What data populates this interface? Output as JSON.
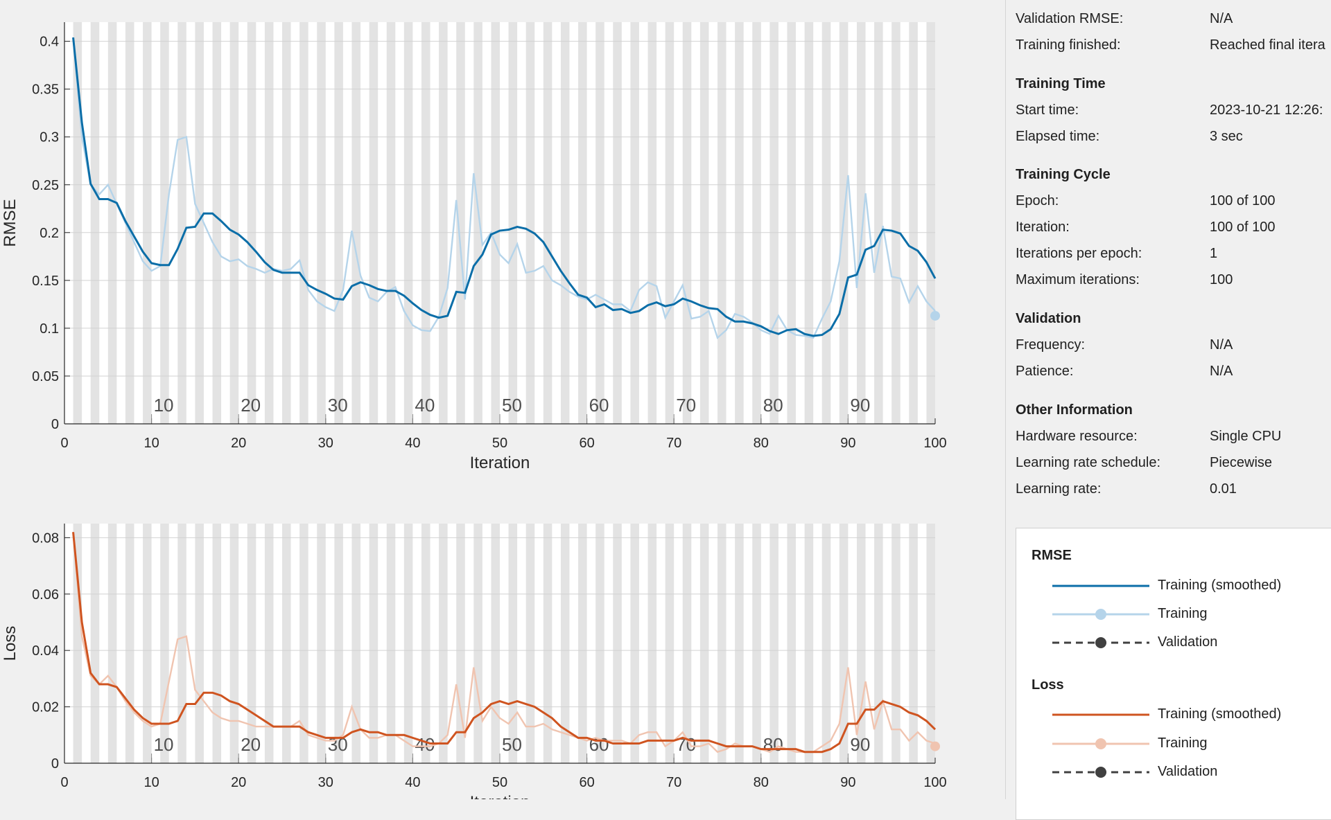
{
  "info": {
    "rows_top": [
      {
        "label": "Validation RMSE:",
        "value": "N/A"
      },
      {
        "label": "Training finished:",
        "value": "Reached final itera"
      }
    ],
    "sections": [
      {
        "title": "Training Time",
        "rows": [
          {
            "label": "Start time:",
            "value": "2023-10-21 12:26:"
          },
          {
            "label": "Elapsed time:",
            "value": "3 sec"
          }
        ]
      },
      {
        "title": "Training Cycle",
        "rows": [
          {
            "label": "Epoch:",
            "value": "100 of 100"
          },
          {
            "label": "Iteration:",
            "value": "100 of 100"
          },
          {
            "label": "Iterations per epoch:",
            "value": "1"
          },
          {
            "label": "Maximum iterations:",
            "value": "100"
          }
        ]
      },
      {
        "title": "Validation",
        "rows": [
          {
            "label": "Frequency:",
            "value": "N/A"
          },
          {
            "label": "Patience:",
            "value": "N/A"
          }
        ]
      },
      {
        "title": "Other Information",
        "rows": [
          {
            "label": "Hardware resource:",
            "value": "Single CPU"
          },
          {
            "label": "Learning rate schedule:",
            "value": "Piecewise"
          },
          {
            "label": "Learning rate:",
            "value": "0.01"
          }
        ]
      }
    ]
  },
  "legend": {
    "rmse_title": "RMSE",
    "loss_title": "Loss",
    "entries": [
      "Training (smoothed)",
      "Training",
      "Validation"
    ]
  },
  "chart_data": [
    {
      "type": "line",
      "xlabel": "Iteration",
      "ylabel": "RMSE",
      "xlim": [
        0,
        100
      ],
      "ylim": [
        0,
        0.42
      ],
      "yticks": [
        "0",
        "0.05",
        "0.1",
        "0.15",
        "0.2",
        "0.25",
        "0.3",
        "0.35",
        "0.4"
      ],
      "xticks": [
        "0",
        "10",
        "20",
        "30",
        "40",
        "50",
        "60",
        "70",
        "80",
        "90",
        "100"
      ],
      "epoch_labels": [
        "10",
        "20",
        "30",
        "40",
        "50",
        "60",
        "70",
        "80",
        "90"
      ],
      "grid": true,
      "colors": {
        "smoothed": "#0b6ea8",
        "raw": "#b5d4ea"
      },
      "series": [
        {
          "name": "Training (smoothed)",
          "values": [
            0.404,
            0.315,
            0.251,
            0.235,
            0.235,
            0.231,
            0.212,
            0.196,
            0.18,
            0.168,
            0.166,
            0.166,
            0.183,
            0.205,
            0.206,
            0.22,
            0.22,
            0.212,
            0.203,
            0.198,
            0.19,
            0.18,
            0.169,
            0.161,
            0.158,
            0.158,
            0.158,
            0.145,
            0.14,
            0.136,
            0.131,
            0.13,
            0.144,
            0.148,
            0.145,
            0.141,
            0.139,
            0.139,
            0.134,
            0.126,
            0.119,
            0.114,
            0.111,
            0.113,
            0.138,
            0.137,
            0.165,
            0.177,
            0.198,
            0.202,
            0.203,
            0.206,
            0.204,
            0.199,
            0.19,
            0.175,
            0.16,
            0.147,
            0.135,
            0.132,
            0.122,
            0.125,
            0.119,
            0.12,
            0.116,
            0.118,
            0.124,
            0.127,
            0.123,
            0.125,
            0.131,
            0.128,
            0.124,
            0.121,
            0.12,
            0.112,
            0.107,
            0.107,
            0.105,
            0.102,
            0.097,
            0.094,
            0.098,
            0.099,
            0.094,
            0.092,
            0.093,
            0.099,
            0.115,
            0.153,
            0.156,
            0.182,
            0.186,
            0.203,
            0.202,
            0.199,
            0.186,
            0.181,
            0.169,
            0.152,
            0.135
          ]
        },
        {
          "name": "Training",
          "values": [
            0.404,
            0.3,
            0.25,
            0.24,
            0.25,
            0.23,
            0.21,
            0.19,
            0.17,
            0.16,
            0.165,
            0.24,
            0.297,
            0.3,
            0.23,
            0.21,
            0.19,
            0.175,
            0.17,
            0.172,
            0.165,
            0.162,
            0.158,
            0.162,
            0.16,
            0.162,
            0.171,
            0.14,
            0.128,
            0.122,
            0.118,
            0.14,
            0.202,
            0.155,
            0.132,
            0.128,
            0.138,
            0.143,
            0.118,
            0.103,
            0.098,
            0.097,
            0.112,
            0.142,
            0.234,
            0.13,
            0.262,
            0.187,
            0.2,
            0.177,
            0.168,
            0.188,
            0.158,
            0.16,
            0.165,
            0.15,
            0.145,
            0.138,
            0.133,
            0.13,
            0.135,
            0.13,
            0.125,
            0.125,
            0.118,
            0.14,
            0.148,
            0.144,
            0.111,
            0.128,
            0.145,
            0.11,
            0.112,
            0.118,
            0.09,
            0.098,
            0.115,
            0.112,
            0.106,
            0.098,
            0.094,
            0.113,
            0.098,
            0.093,
            0.092,
            0.09,
            0.11,
            0.128,
            0.17,
            0.26,
            0.142,
            0.241,
            0.158,
            0.207,
            0.154,
            0.152,
            0.127,
            0.144,
            0.128,
            0.118,
            0.113
          ]
        }
      ]
    },
    {
      "type": "line",
      "xlabel": "Iteration",
      "ylabel": "Loss",
      "xlim": [
        0,
        100
      ],
      "ylim": [
        0,
        0.085
      ],
      "yticks": [
        "0",
        "0.02",
        "0.04",
        "0.06",
        "0.08"
      ],
      "xticks": [
        "0",
        "10",
        "20",
        "30",
        "40",
        "50",
        "60",
        "70",
        "80",
        "90",
        "100"
      ],
      "epoch_labels": [
        "10",
        "20",
        "30",
        "40",
        "50",
        "60",
        "70",
        "80",
        "90"
      ],
      "grid": true,
      "colors": {
        "smoothed": "#cf5420",
        "raw": "#f0c4b0"
      },
      "series": [
        {
          "name": "Training (smoothed)",
          "values": [
            0.082,
            0.05,
            0.032,
            0.028,
            0.028,
            0.027,
            0.023,
            0.019,
            0.016,
            0.014,
            0.014,
            0.014,
            0.015,
            0.021,
            0.021,
            0.025,
            0.025,
            0.024,
            0.022,
            0.021,
            0.019,
            0.017,
            0.015,
            0.013,
            0.013,
            0.013,
            0.013,
            0.011,
            0.01,
            0.009,
            0.009,
            0.009,
            0.011,
            0.012,
            0.011,
            0.011,
            0.01,
            0.01,
            0.01,
            0.009,
            0.008,
            0.007,
            0.007,
            0.007,
            0.011,
            0.011,
            0.016,
            0.018,
            0.021,
            0.022,
            0.021,
            0.022,
            0.021,
            0.02,
            0.018,
            0.016,
            0.013,
            0.011,
            0.009,
            0.009,
            0.008,
            0.008,
            0.007,
            0.007,
            0.007,
            0.007,
            0.008,
            0.008,
            0.008,
            0.008,
            0.009,
            0.008,
            0.008,
            0.008,
            0.007,
            0.006,
            0.006,
            0.006,
            0.006,
            0.005,
            0.005,
            0.005,
            0.005,
            0.005,
            0.004,
            0.004,
            0.004,
            0.005,
            0.007,
            0.014,
            0.014,
            0.019,
            0.019,
            0.022,
            0.021,
            0.02,
            0.018,
            0.017,
            0.015,
            0.012,
            0.009
          ]
        },
        {
          "name": "Training",
          "values": [
            0.082,
            0.045,
            0.031,
            0.028,
            0.031,
            0.027,
            0.022,
            0.018,
            0.015,
            0.013,
            0.014,
            0.029,
            0.044,
            0.045,
            0.026,
            0.022,
            0.018,
            0.016,
            0.015,
            0.015,
            0.014,
            0.013,
            0.013,
            0.013,
            0.013,
            0.013,
            0.015,
            0.01,
            0.009,
            0.008,
            0.008,
            0.01,
            0.02,
            0.012,
            0.009,
            0.009,
            0.01,
            0.01,
            0.008,
            0.006,
            0.006,
            0.006,
            0.007,
            0.01,
            0.028,
            0.009,
            0.034,
            0.015,
            0.02,
            0.016,
            0.014,
            0.018,
            0.013,
            0.013,
            0.014,
            0.012,
            0.011,
            0.01,
            0.009,
            0.008,
            0.009,
            0.008,
            0.008,
            0.008,
            0.007,
            0.01,
            0.011,
            0.011,
            0.006,
            0.008,
            0.011,
            0.006,
            0.006,
            0.007,
            0.004,
            0.005,
            0.007,
            0.006,
            0.006,
            0.005,
            0.004,
            0.006,
            0.005,
            0.004,
            0.004,
            0.004,
            0.006,
            0.008,
            0.014,
            0.034,
            0.01,
            0.029,
            0.012,
            0.022,
            0.012,
            0.012,
            0.008,
            0.011,
            0.008,
            0.007,
            0.006
          ]
        }
      ]
    }
  ]
}
